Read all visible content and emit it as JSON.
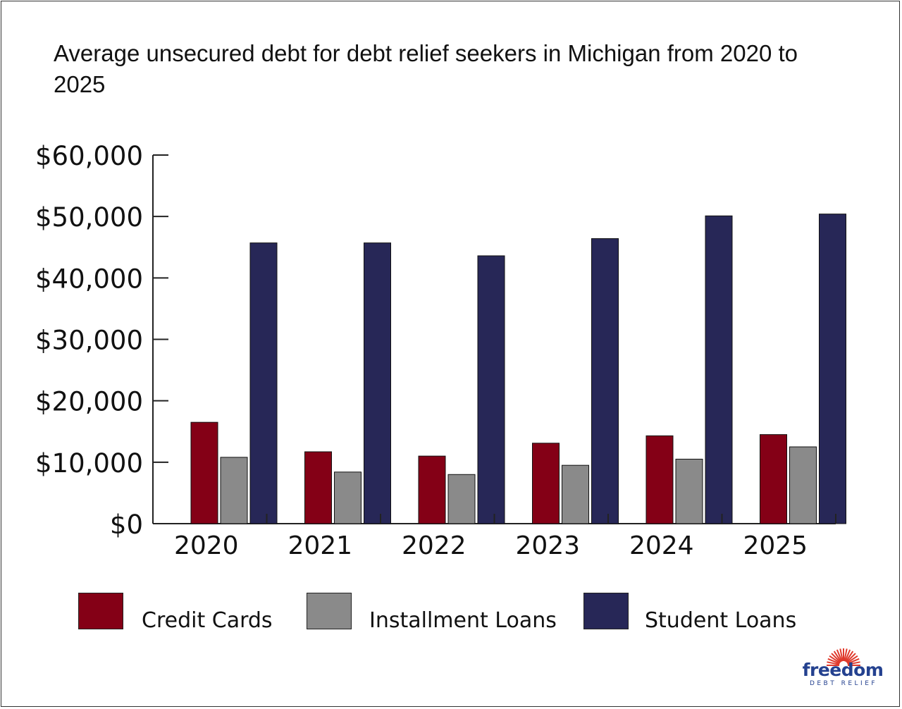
{
  "colors": {
    "credit_cards": "#840016",
    "installment_loans": "#8a8a8a",
    "student_loans": "#272757",
    "axis": "#222222",
    "logo": "#24418f",
    "logo_sun": "#e03a2c"
  },
  "logo": {
    "word": "freedom",
    "tagline": "DEBT RELIEF"
  },
  "chart_data": {
    "type": "bar",
    "title": "Average unsecured debt for debt relief seekers in Michigan from 2020 to 2025",
    "categories": [
      "2020",
      "2021",
      "2022",
      "2023",
      "2024",
      "2025"
    ],
    "series": [
      {
        "name": "Credit Cards",
        "values": [
          16500,
          11700,
          11000,
          13100,
          14300,
          14500
        ]
      },
      {
        "name": "Installment Loans",
        "values": [
          10800,
          8400,
          8000,
          9500,
          10500,
          12500
        ]
      },
      {
        "name": "Student Loans",
        "values": [
          45700,
          45700,
          43600,
          46400,
          50100,
          50400
        ]
      }
    ],
    "y_ticks": [
      "$0",
      "$10,000",
      "$20,000",
      "$30,000",
      "$40,000",
      "$50,000",
      "$60,000"
    ],
    "ylim": [
      0,
      60000
    ],
    "grid": false,
    "legend_position": "bottom",
    "xlabel": "",
    "ylabel": ""
  }
}
